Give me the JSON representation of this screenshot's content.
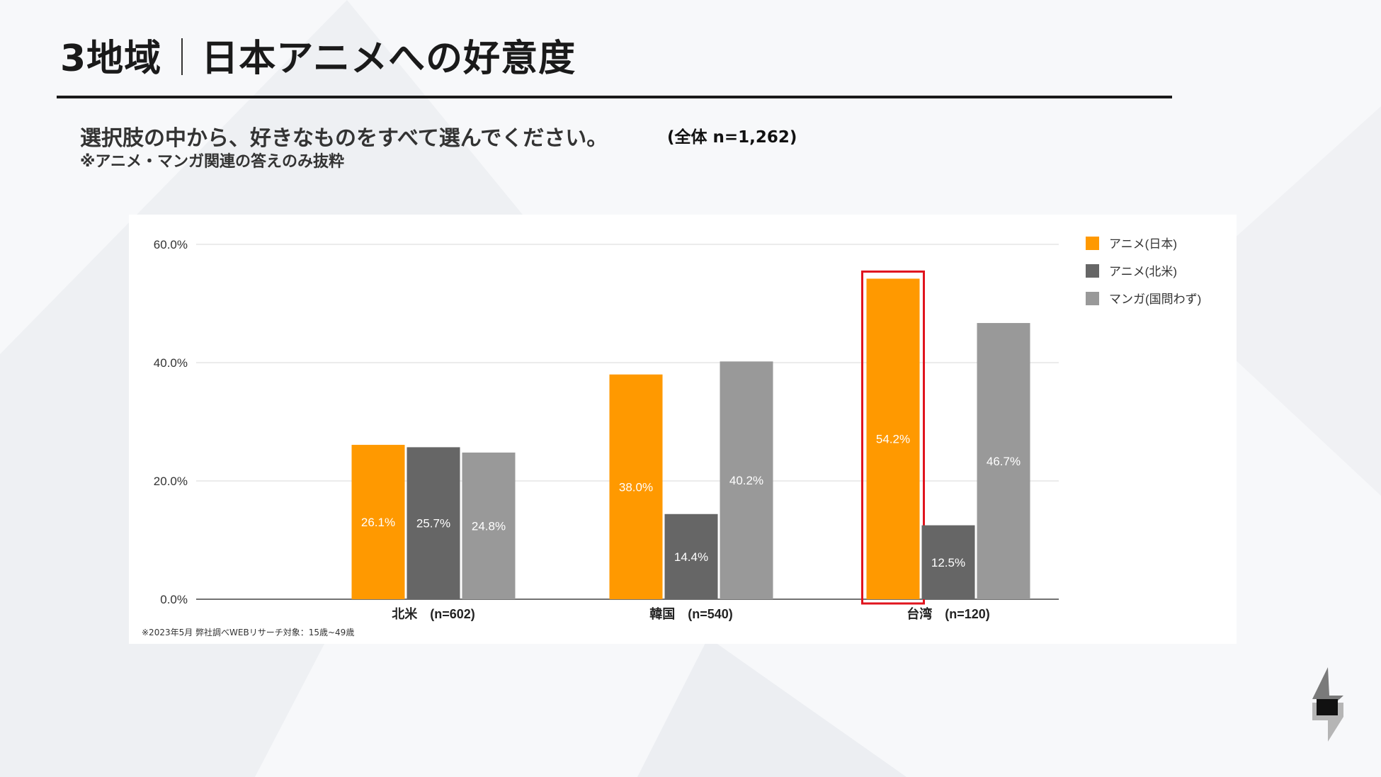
{
  "title": {
    "main": "3地域",
    "sub": "日本アニメへの好意度"
  },
  "question": "選択肢の中から、好きなものをすべて選んでください。",
  "sample": "(全体 n=1,262)",
  "note": "※アニメ・マンガ関連の答えのみ抜粋",
  "footnote": "※2023年5月 弊社調べWEBリサーチ対象：15歳~49歳",
  "colors": {
    "anime_japan": "#ff9900",
    "anime_na": "#666666",
    "manga": "#999999",
    "highlight": "#e0141e",
    "grid": "#d9d9d9"
  },
  "chart_data": {
    "type": "bar",
    "categories": [
      "北米　(n=602)",
      "韓国　(n=540)",
      "台湾　(n=120)"
    ],
    "series": [
      {
        "name": "アニメ(日本)",
        "values": [
          26.1,
          38.0,
          54.2
        ],
        "labels": [
          "26.1%",
          "38.0%",
          "54.2%"
        ]
      },
      {
        "name": "アニメ(北米)",
        "values": [
          25.7,
          14.4,
          12.5
        ],
        "labels": [
          "25.7%",
          "14.4%",
          "12.5%"
        ]
      },
      {
        "name": "マンガ(国問わず)",
        "values": [
          24.8,
          40.2,
          46.7
        ],
        "labels": [
          "24.8%",
          "40.2%",
          "46.7%"
        ]
      }
    ],
    "y_ticks": [
      "0.0%",
      "20.0%",
      "40.0%",
      "60.0%"
    ],
    "ylim": [
      0,
      60
    ],
    "legend": [
      "アニメ(日本)",
      "アニメ(北米)",
      "マンガ(国問わず)"
    ],
    "legend_position": "top-right",
    "highlight": {
      "category": "台湾　(n=120)",
      "series": "アニメ(日本)"
    }
  }
}
